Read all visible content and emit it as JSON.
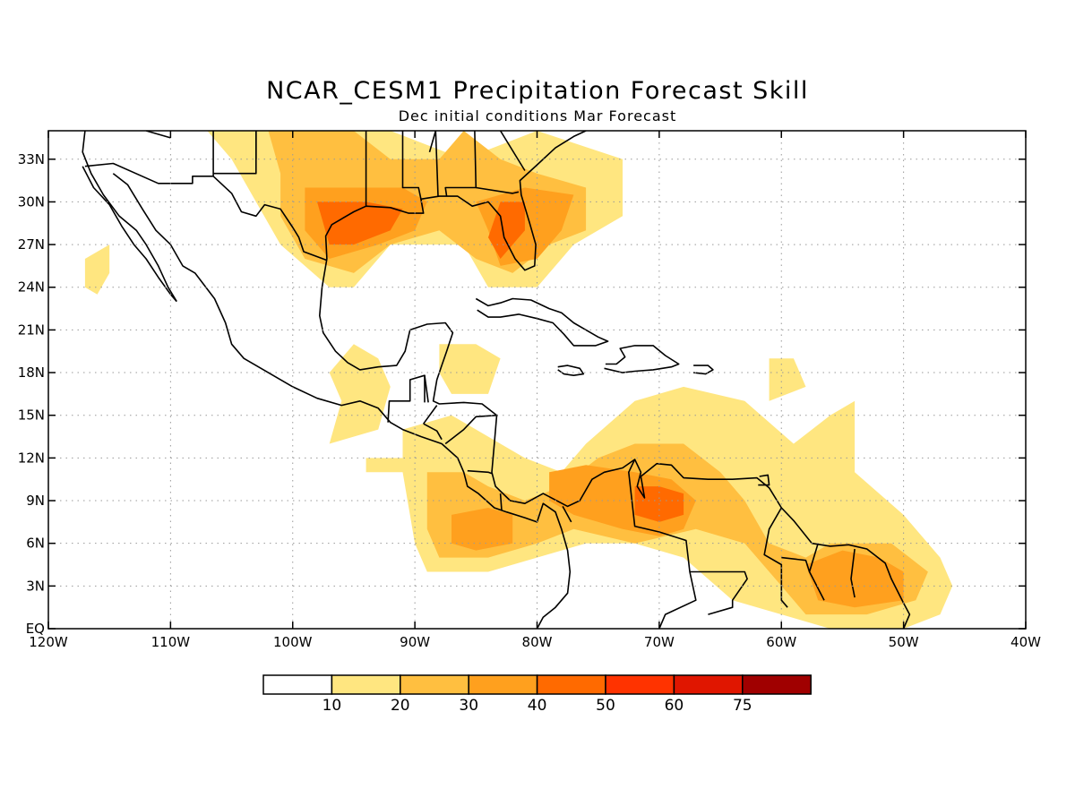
{
  "title": "NCAR_CESM1 Precipitation Forecast Skill",
  "subtitle": "Dec initial conditions  Mar Forecast",
  "map": {
    "lon_range": [
      -120,
      -40
    ],
    "lat_range": [
      0,
      35
    ],
    "lon_ticks": [
      {
        "lon": -120,
        "label": "120W"
      },
      {
        "lon": -110,
        "label": "110W"
      },
      {
        "lon": -100,
        "label": "100W"
      },
      {
        "lon": -90,
        "label": "90W"
      },
      {
        "lon": -80,
        "label": "80W"
      },
      {
        "lon": -70,
        "label": "70W"
      },
      {
        "lon": -60,
        "label": "60W"
      },
      {
        "lon": -50,
        "label": "50W"
      },
      {
        "lon": -40,
        "label": "40W"
      }
    ],
    "lat_ticks": [
      {
        "lat": 0,
        "label": "EQ"
      },
      {
        "lat": 3,
        "label": "3N"
      },
      {
        "lat": 6,
        "label": "6N"
      },
      {
        "lat": 9,
        "label": "9N"
      },
      {
        "lat": 12,
        "label": "12N"
      },
      {
        "lat": 15,
        "label": "15N"
      },
      {
        "lat": 18,
        "label": "18N"
      },
      {
        "lat": 21,
        "label": "21N"
      },
      {
        "lat": 24,
        "label": "24N"
      },
      {
        "lat": 27,
        "label": "27N"
      },
      {
        "lat": 30,
        "label": "30N"
      },
      {
        "lat": 33,
        "label": "33N"
      }
    ],
    "grid": true,
    "colorbar": {
      "colors": [
        "#ffffff",
        "#ffe680",
        "#ffbf40",
        "#ffa01e",
        "#ff6a00",
        "#ff3300",
        "#e01600",
        "#a00000"
      ],
      "labels": [
        "10",
        "20",
        "30",
        "40",
        "50",
        "60",
        "75"
      ]
    },
    "skill_regions": [
      {
        "name": "gulf-coast-us",
        "level": 1,
        "pts": [
          [
            -103,
            35
          ],
          [
            -92,
            35
          ],
          [
            -86,
            33
          ],
          [
            -80,
            35
          ],
          [
            -73,
            33
          ],
          [
            -73,
            29
          ],
          [
            -77,
            27
          ],
          [
            -80,
            24
          ],
          [
            -84,
            24
          ],
          [
            -86,
            27
          ],
          [
            -92,
            27
          ],
          [
            -95,
            24
          ],
          [
            -97,
            24
          ],
          [
            -101,
            27
          ],
          [
            -103,
            30
          ],
          [
            -105,
            33
          ],
          [
            -107,
            35
          ]
        ]
      },
      {
        "name": "gulf-coast-us",
        "level": 2,
        "pts": [
          [
            -102,
            35
          ],
          [
            -95,
            35
          ],
          [
            -92,
            33
          ],
          [
            -88,
            33
          ],
          [
            -86,
            35
          ],
          [
            -83,
            33
          ],
          [
            -80,
            32
          ],
          [
            -76,
            31
          ],
          [
            -76,
            28
          ],
          [
            -79,
            27
          ],
          [
            -82,
            25
          ],
          [
            -85,
            26
          ],
          [
            -88,
            28
          ],
          [
            -92,
            27
          ],
          [
            -95,
            25
          ],
          [
            -99,
            26
          ],
          [
            -101,
            29
          ],
          [
            -101,
            32
          ]
        ]
      },
      {
        "name": "texas-louisiana",
        "level": 3,
        "pts": [
          [
            -99,
            31
          ],
          [
            -95,
            31
          ],
          [
            -91,
            31
          ],
          [
            -89,
            30
          ],
          [
            -90,
            28
          ],
          [
            -93,
            27
          ],
          [
            -97,
            26
          ],
          [
            -99,
            28
          ]
        ]
      },
      {
        "name": "texas-louisiana",
        "level": 4,
        "pts": [
          [
            -98,
            30
          ],
          [
            -94,
            30
          ],
          [
            -91,
            29.5
          ],
          [
            -92,
            28
          ],
          [
            -95,
            27
          ],
          [
            -97,
            27
          ]
        ]
      },
      {
        "name": "florida",
        "level": 3,
        "pts": [
          [
            -85,
            30
          ],
          [
            -81,
            31
          ],
          [
            -77,
            30.5
          ],
          [
            -78,
            28
          ],
          [
            -80,
            26
          ],
          [
            -83,
            25.5
          ],
          [
            -84,
            28
          ]
        ]
      },
      {
        "name": "florida",
        "level": 4,
        "pts": [
          [
            -83,
            30
          ],
          [
            -81,
            30
          ],
          [
            -81,
            28
          ],
          [
            -83,
            26
          ],
          [
            -84,
            27.5
          ]
        ]
      },
      {
        "name": "mexico-west",
        "level": 1,
        "pts": [
          [
            -117,
            26
          ],
          [
            -115,
            27
          ],
          [
            -115,
            25
          ],
          [
            -116,
            23.5
          ],
          [
            -117,
            24
          ]
        ]
      },
      {
        "name": "central-america",
        "level": 1,
        "pts": [
          [
            -91,
            14
          ],
          [
            -87,
            15
          ],
          [
            -83,
            13
          ],
          [
            -81,
            12
          ],
          [
            -78,
            11
          ],
          [
            -76,
            13
          ],
          [
            -72,
            16
          ],
          [
            -68,
            17
          ],
          [
            -63,
            16
          ],
          [
            -59,
            13
          ],
          [
            -56,
            15
          ],
          [
            -54,
            16
          ],
          [
            -54,
            11
          ],
          [
            -50,
            8
          ],
          [
            -47,
            5
          ],
          [
            -46,
            3
          ],
          [
            -47,
            1
          ],
          [
            -50,
            0
          ],
          [
            -56,
            0
          ],
          [
            -60,
            1
          ],
          [
            -64,
            2
          ],
          [
            -68,
            5
          ],
          [
            -72,
            6
          ],
          [
            -76,
            6
          ],
          [
            -80,
            5
          ],
          [
            -84,
            4
          ],
          [
            -89,
            4
          ],
          [
            -90,
            6
          ],
          [
            -91,
            11
          ],
          [
            -94,
            11
          ],
          [
            -94,
            12
          ],
          [
            -91,
            12
          ]
        ]
      },
      {
        "name": "caribbean-north-sa",
        "level": 2,
        "pts": [
          [
            -89,
            11
          ],
          [
            -86,
            11
          ],
          [
            -84,
            10
          ],
          [
            -81,
            9
          ],
          [
            -78,
            10
          ],
          [
            -75,
            12
          ],
          [
            -72,
            13
          ],
          [
            -68,
            13
          ],
          [
            -65,
            11
          ],
          [
            -63,
            9
          ],
          [
            -61,
            6
          ],
          [
            -58,
            5
          ],
          [
            -56,
            6
          ],
          [
            -51,
            6
          ],
          [
            -48,
            4
          ],
          [
            -49,
            2
          ],
          [
            -53,
            1
          ],
          [
            -58,
            1
          ],
          [
            -60,
            3
          ],
          [
            -63,
            6
          ],
          [
            -67,
            7
          ],
          [
            -72,
            6
          ],
          [
            -77,
            7
          ],
          [
            -80,
            6
          ],
          [
            -84,
            5
          ],
          [
            -88,
            5
          ],
          [
            -89,
            7
          ]
        ]
      },
      {
        "name": "venezuela",
        "level": 3,
        "pts": [
          [
            -79,
            11
          ],
          [
            -76,
            11.5
          ],
          [
            -72,
            11
          ],
          [
            -69,
            10.5
          ],
          [
            -67,
            9
          ],
          [
            -68,
            7
          ],
          [
            -70,
            6.5
          ],
          [
            -73,
            7
          ],
          [
            -77,
            8
          ],
          [
            -79,
            9
          ]
        ]
      },
      {
        "name": "venezuela",
        "level": 4,
        "pts": [
          [
            -72,
            10
          ],
          [
            -70,
            10
          ],
          [
            -68,
            9.5
          ],
          [
            -68,
            8
          ],
          [
            -70,
            7.5
          ],
          [
            -72,
            8
          ]
        ]
      },
      {
        "name": "guianas",
        "level": 3,
        "pts": [
          [
            -58,
            4.5
          ],
          [
            -55,
            5.5
          ],
          [
            -52,
            5
          ],
          [
            -50,
            4
          ],
          [
            -50,
            2
          ],
          [
            -54,
            1.5
          ],
          [
            -57,
            2
          ]
        ]
      },
      {
        "name": "honduras",
        "level": 3,
        "pts": [
          [
            -87,
            8
          ],
          [
            -84,
            8.5
          ],
          [
            -82,
            8
          ],
          [
            -82,
            6
          ],
          [
            -85,
            5.5
          ],
          [
            -87,
            6
          ]
        ]
      },
      {
        "name": "yucatan-east",
        "level": 1,
        "pts": [
          [
            -88,
            20
          ],
          [
            -85,
            20
          ],
          [
            -83,
            19
          ],
          [
            -84,
            16.5
          ],
          [
            -87,
            16.5
          ],
          [
            -88,
            18
          ]
        ]
      },
      {
        "name": "mexico-south",
        "level": 1,
        "pts": [
          [
            -95,
            20
          ],
          [
            -93,
            19
          ],
          [
            -92,
            17
          ],
          [
            -93,
            14
          ],
          [
            -97,
            13
          ],
          [
            -96,
            16
          ],
          [
            -97,
            18
          ]
        ]
      },
      {
        "name": "atlantic-east",
        "level": 1,
        "pts": [
          [
            -61,
            19
          ],
          [
            -59,
            19
          ],
          [
            -58,
            17
          ],
          [
            -61,
            16
          ]
        ]
      }
    ]
  }
}
